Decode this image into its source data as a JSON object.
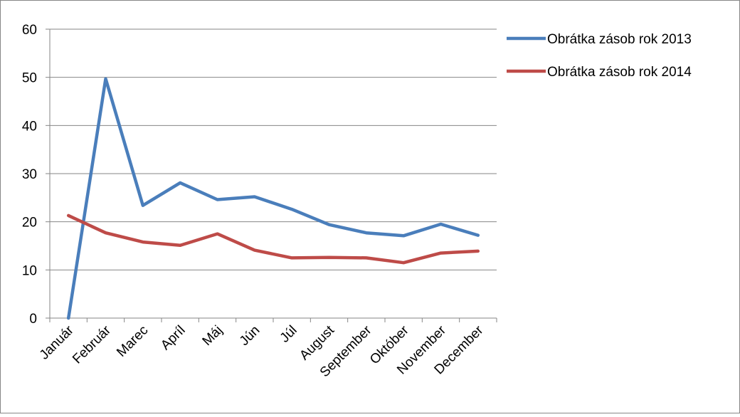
{
  "chart_data": {
    "type": "line",
    "categories": [
      "Január",
      "Február",
      "Marec",
      "Apríl",
      "Máj",
      "Jún",
      "Júl",
      "August",
      "September",
      "Október",
      "November",
      "December"
    ],
    "series": [
      {
        "name": "Obrátka zásob rok 2013",
        "color": "#4a7ebb",
        "values": [
          0,
          49.7,
          23.4,
          28.1,
          24.6,
          25.2,
          22.6,
          19.4,
          17.7,
          17.1,
          19.5,
          17.2
        ]
      },
      {
        "name": "Obrátka zásob rok 2014",
        "color": "#be4b48",
        "values": [
          21.3,
          17.7,
          15.8,
          15.1,
          17.5,
          14.1,
          12.5,
          12.6,
          12.5,
          11.5,
          13.5,
          13.9
        ]
      }
    ],
    "ylim": [
      0,
      60
    ],
    "yticks": [
      "0",
      "10",
      "20",
      "30",
      "40",
      "50",
      "60"
    ],
    "grid": "horizontal",
    "legend_position": "right",
    "title": "",
    "xlabel": "",
    "ylabel": ""
  }
}
